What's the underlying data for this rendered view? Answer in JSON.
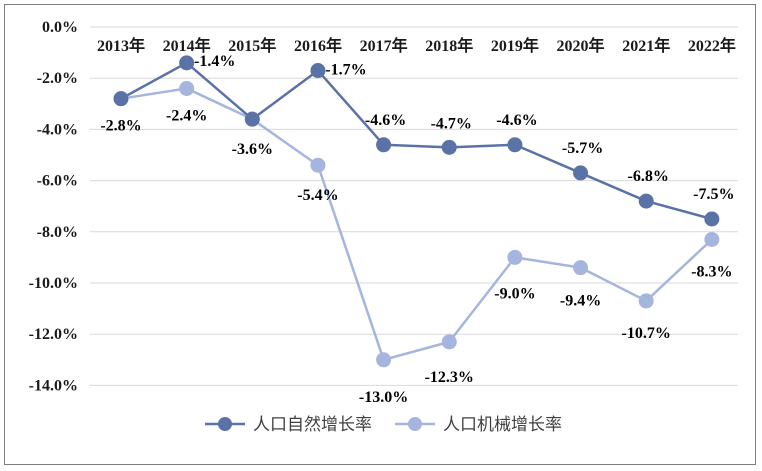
{
  "chart_data": {
    "type": "line",
    "categories": [
      "2013年",
      "2014年",
      "2015年",
      "2016年",
      "2017年",
      "2018年",
      "2019年",
      "2020年",
      "2021年",
      "2022年"
    ],
    "series": [
      {
        "name": "人口自然增长率",
        "values": [
          -2.8,
          -1.4,
          -3.6,
          -1.7,
          -4.6,
          -4.7,
          -4.6,
          -5.7,
          -6.8,
          -7.5
        ],
        "labels": [
          "",
          "-1.4%",
          "",
          "-1.7%",
          "-4.6%",
          "-4.7%",
          "-4.6%",
          "-5.7%",
          "-6.8%",
          "-7.5%"
        ],
        "color": "#5b72a6"
      },
      {
        "name": "人口机械增长率",
        "values": [
          -2.8,
          -2.4,
          -3.6,
          -5.4,
          -13.0,
          -12.3,
          -9.0,
          -9.4,
          -10.7,
          -8.3
        ],
        "labels": [
          "-2.8%",
          "-2.4%",
          "-3.6%",
          "-5.4%",
          "-13.0%",
          "-12.3%",
          "-9.0%",
          "-9.4%",
          "-10.7%",
          "-8.3%"
        ],
        "color": "#a5b5de"
      }
    ],
    "y_ticks": [
      "0.0%",
      "-2.0%",
      "-4.0%",
      "-6.0%",
      "-8.0%",
      "-10.0%",
      "-12.0%",
      "-14.0%"
    ],
    "ylim": [
      -14,
      0
    ],
    "grid": true,
    "legend": "bottom",
    "x_axis_position": "top"
  }
}
